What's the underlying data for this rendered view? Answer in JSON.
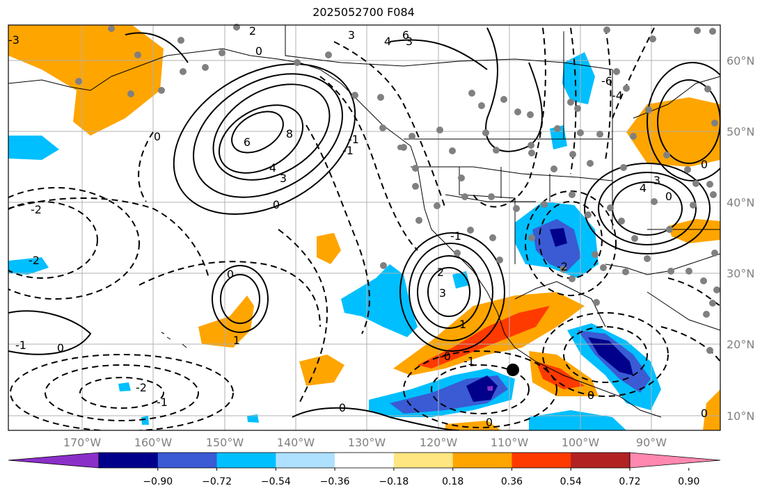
{
  "title": "2025052700 F084",
  "lon_labels": [
    "170°W",
    "160°W",
    "150°W",
    "140°W",
    "130°W",
    "120°W",
    "110°W",
    "100°W",
    "90°W"
  ],
  "lat_labels": [
    "60°N",
    "50°N",
    "40°N",
    "30°N",
    "20°N",
    "10°N"
  ],
  "colorbar": {
    "ticks": [
      "−0.90",
      "−0.72",
      "−0.54",
      "−0.36",
      "−0.18",
      "0.18",
      "0.36",
      "0.54",
      "0.72",
      "0.90"
    ],
    "colors": [
      "#8b2fc9",
      "#00008b",
      "#3a5bd4",
      "#00bfff",
      "#aee1ff",
      "#ffffff",
      "#ffe680",
      "#ffa500",
      "#ff3a00",
      "#b22222",
      "#ff88b0"
    ]
  },
  "contour_labels": [
    "6",
    "4",
    "3",
    "2",
    "0",
    "8",
    "6",
    "4",
    "3",
    "-1",
    "0",
    "-2",
    "-2",
    "-2",
    "-1",
    "0",
    "-1",
    "0",
    "-3",
    "0",
    "-1",
    "1",
    "0",
    "-0",
    "0",
    "-1",
    "-2",
    "3",
    "1",
    "2",
    "3",
    "-6",
    "-4",
    "0",
    "4",
    "3",
    "0",
    "-1",
    "0",
    "0"
  ],
  "theme": {
    "warm1": "#ffa500",
    "warm2": "#ff3a00",
    "warm3": "#b22222",
    "cool1": "#00bfff",
    "cool2": "#3a5bd4",
    "cool3": "#00008b",
    "axis_text": "#808080"
  }
}
